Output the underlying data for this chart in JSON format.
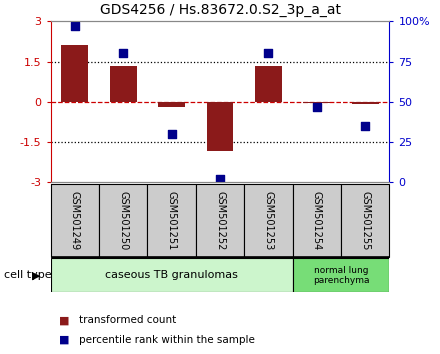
{
  "title": "GDS4256 / Hs.83672.0.S2_3p_a_at",
  "samples": [
    "GSM501249",
    "GSM501250",
    "GSM501251",
    "GSM501252",
    "GSM501253",
    "GSM501254",
    "GSM501255"
  ],
  "bar_values": [
    2.1,
    1.35,
    -0.2,
    -1.85,
    1.35,
    -0.05,
    -0.08
  ],
  "percentile_values": [
    97,
    80,
    30,
    2,
    80,
    47,
    35
  ],
  "bar_color": "#8B1A1A",
  "dot_color": "#00008B",
  "ylim_left": [
    -3,
    3
  ],
  "yticks_left": [
    -3,
    -1.5,
    0,
    1.5,
    3
  ],
  "yticks_right": [
    0,
    25,
    50,
    75,
    100
  ],
  "ytick_labels_right": [
    "0",
    "25",
    "50",
    "75",
    "100%"
  ],
  "group0_label": "caseous TB granulomas",
  "group0_color": "#ccf5cc",
  "group0_count": 5,
  "group1_label": "normal lung\nparenchyma",
  "group1_color": "#77dd77",
  "group1_count": 2,
  "cell_type_label": "cell type",
  "legend_bar_label": "transformed count",
  "legend_dot_label": "percentile rank within the sample",
  "background_color": "#ffffff",
  "bar_color_left": "#cc0000",
  "tick_color_right": "#0000cc",
  "bar_width": 0.55,
  "dot_size": 40,
  "zero_line_color": "#cc0000",
  "hline_color": "#000000",
  "box_color": "#cccccc",
  "title_fontsize": 10
}
